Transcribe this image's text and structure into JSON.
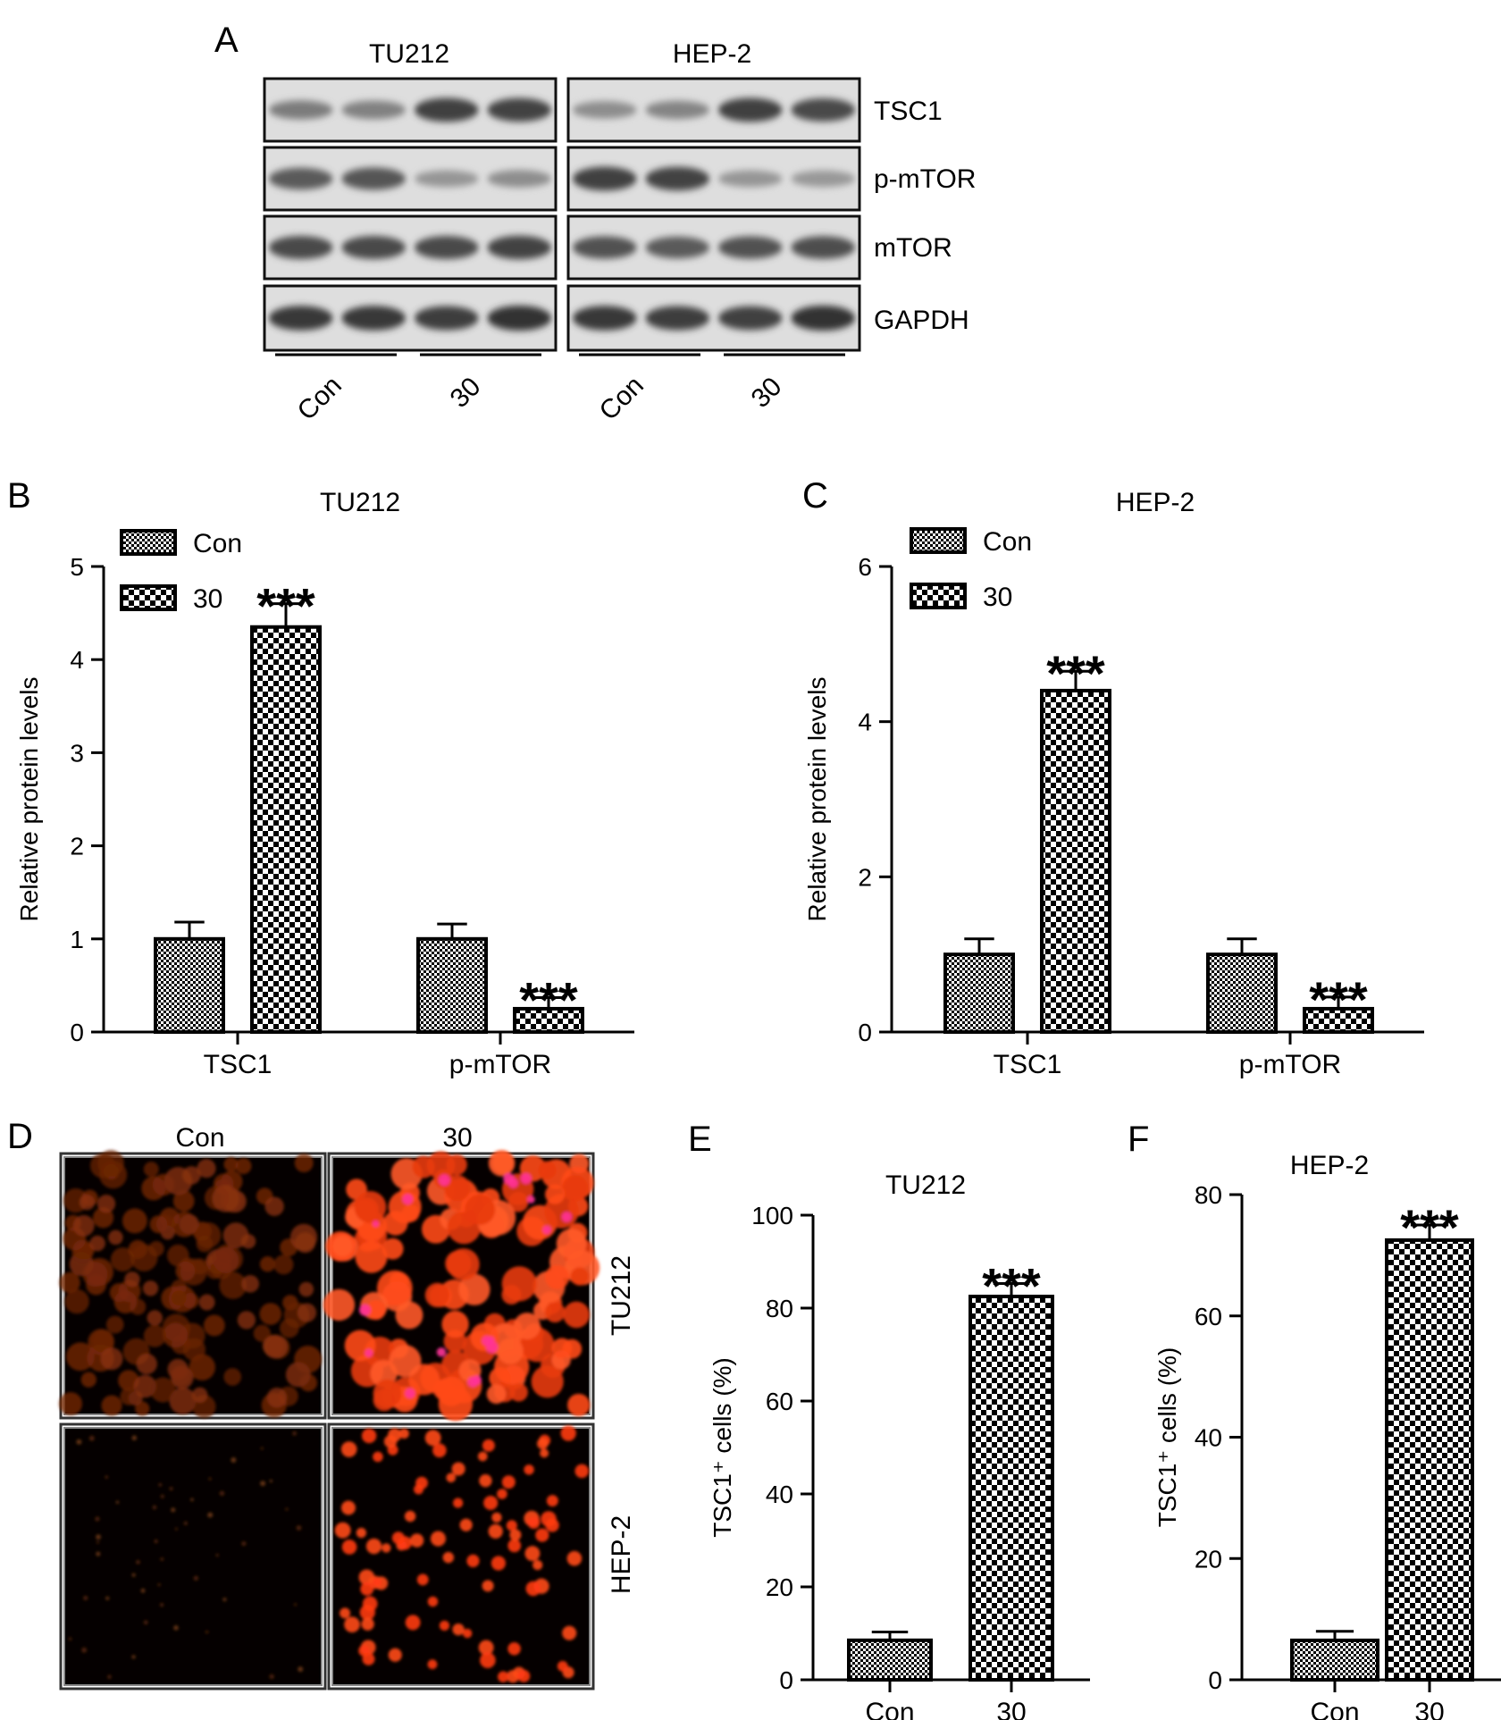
{
  "panels": {
    "A": {
      "letter": "A",
      "cell_lines": [
        "TU212",
        "HEP-2"
      ],
      "proteins": [
        "TSC1",
        "p-mTOR",
        "mTOR",
        "GAPDH"
      ],
      "groups": [
        "Con",
        "30"
      ],
      "band_intensity": [
        [
          [
            0.45,
            0.42,
            0.8,
            0.78
          ],
          [
            0.35,
            0.4,
            0.8,
            0.75
          ]
        ],
        [
          [
            0.65,
            0.68,
            0.3,
            0.35
          ],
          [
            0.8,
            0.78,
            0.3,
            0.28
          ]
        ],
        [
          [
            0.75,
            0.75,
            0.75,
            0.78
          ],
          [
            0.7,
            0.65,
            0.7,
            0.72
          ]
        ],
        [
          [
            0.85,
            0.85,
            0.82,
            0.88
          ],
          [
            0.85,
            0.82,
            0.8,
            0.88
          ]
        ]
      ]
    },
    "D": {
      "letter": "D",
      "columns": [
        "Con",
        "30"
      ],
      "rows": [
        "TU212",
        "HEP-2"
      ]
    }
  },
  "colors": {
    "fluor_dim": "#7a2a08",
    "fluor_bright": "#ff4a1a",
    "fluor_hot": "#ff3399"
  },
  "chart_data": [
    {
      "id": "B",
      "letter": "B",
      "type": "bar",
      "title": "TU212",
      "ylabel": "Relative protein levels",
      "ylim": [
        0,
        5
      ],
      "yticks": [
        0,
        1,
        2,
        3,
        4,
        5
      ],
      "categories": [
        "TSC1",
        "p-mTOR"
      ],
      "series": [
        {
          "name": "Con",
          "pattern": "fine",
          "values": [
            1.0,
            1.0
          ],
          "errors": [
            0.18,
            0.16
          ]
        },
        {
          "name": "30",
          "pattern": "coarse",
          "values": [
            4.35,
            0.25
          ],
          "errors": [
            0.25,
            0.12
          ]
        }
      ],
      "annotations": [
        {
          "series": 1,
          "category": 0,
          "text": "***"
        },
        {
          "series": 1,
          "category": 1,
          "text": "***"
        }
      ],
      "legend": "top-left"
    },
    {
      "id": "C",
      "letter": "C",
      "type": "bar",
      "title": "HEP-2",
      "ylabel": "Relative protein levels",
      "ylim": [
        0,
        6
      ],
      "yticks": [
        0,
        2,
        4,
        6
      ],
      "categories": [
        "TSC1",
        "p-mTOR"
      ],
      "series": [
        {
          "name": "Con",
          "pattern": "fine",
          "values": [
            1.0,
            1.0
          ],
          "errors": [
            0.2,
            0.2
          ]
        },
        {
          "name": "30",
          "pattern": "coarse",
          "values": [
            4.4,
            0.3
          ],
          "errors": [
            0.25,
            0.15
          ]
        }
      ],
      "annotations": [
        {
          "series": 1,
          "category": 0,
          "text": "***"
        },
        {
          "series": 1,
          "category": 1,
          "text": "***"
        }
      ],
      "legend": "top-left"
    },
    {
      "id": "E",
      "letter": "E",
      "type": "bar",
      "title": "TU212",
      "ylabel": "TSC1⁺ cells (%)",
      "ylim": [
        0,
        100
      ],
      "yticks": [
        0,
        20,
        40,
        60,
        80,
        100
      ],
      "categories": [
        "Con",
        "30"
      ],
      "series": [
        {
          "name": "",
          "patterns": [
            "fine",
            "coarse"
          ],
          "values": [
            8.5,
            82.5
          ],
          "errors": [
            1.8,
            2.8
          ]
        }
      ],
      "annotations": [
        {
          "series": 0,
          "category": 1,
          "text": "***"
        }
      ]
    },
    {
      "id": "F",
      "letter": "F",
      "type": "bar",
      "title": "HEP-2",
      "ylabel": "TSC1⁺ cells (%)",
      "ylim": [
        0,
        80
      ],
      "yticks": [
        0,
        20,
        40,
        60,
        80
      ],
      "categories": [
        "Con",
        "30"
      ],
      "series": [
        {
          "name": "",
          "patterns": [
            "fine",
            "coarse"
          ],
          "values": [
            6.5,
            72.5
          ],
          "errors": [
            1.5,
            2.5
          ]
        }
      ],
      "annotations": [
        {
          "series": 0,
          "category": 1,
          "text": "***"
        }
      ]
    }
  ]
}
